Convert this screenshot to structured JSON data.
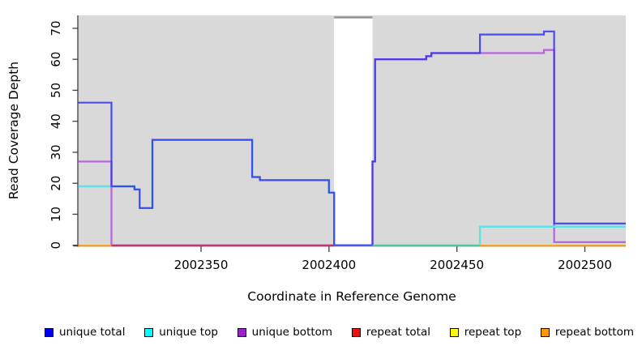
{
  "chart_data": {
    "type": "line",
    "subtype": "step-coverage",
    "title": "",
    "xlabel": "Coordinate in Reference Genome",
    "ylabel": "Read Coverage Depth",
    "x_ticks": [
      2002350,
      2002400,
      2002450,
      2002500
    ],
    "y_ticks": [
      0,
      10,
      20,
      30,
      40,
      50,
      60,
      70
    ],
    "x_range": [
      2002302,
      2002516
    ],
    "y_range": [
      0,
      74
    ],
    "grid": "off",
    "legend_position": "bottom",
    "plot_bg": "#D9D9D9",
    "axis_color": "#404040",
    "masked_region": {
      "x1": 2002402,
      "x2": 2002417,
      "fill": "#FFFFFF",
      "top_border": "#8A8A8A"
    },
    "series": [
      {
        "key": "unique-total",
        "label": "unique total",
        "legend_color": "#0000EE",
        "line_color": "#3232EE",
        "line_width": 2.2,
        "opacity": 0.85,
        "draw": true,
        "points": [
          [
            2002302,
            46
          ],
          [
            2002315,
            19
          ],
          [
            2002324,
            18
          ],
          [
            2002326,
            12
          ],
          [
            2002331,
            34
          ],
          [
            2002370,
            22
          ],
          [
            2002373,
            21
          ],
          [
            2002400,
            17
          ],
          [
            2002402,
            0
          ],
          [
            2002417,
            27
          ],
          [
            2002418,
            60
          ],
          [
            2002438,
            61
          ],
          [
            2002440,
            62
          ],
          [
            2002459,
            68
          ],
          [
            2002484,
            69
          ],
          [
            2002488,
            7
          ],
          [
            2002516,
            7
          ]
        ]
      },
      {
        "key": "unique-top",
        "label": "unique top",
        "legend_color": "#00FFFF",
        "line_color": "#60E2EA",
        "line_width": 2.5,
        "opacity": 1,
        "draw": true,
        "points": [
          [
            2002302,
            19
          ],
          [
            2002324,
            18
          ],
          [
            2002326,
            12
          ],
          [
            2002331,
            34
          ],
          [
            2002370,
            22
          ],
          [
            2002373,
            21
          ],
          [
            2002400,
            17
          ],
          [
            2002402,
            0
          ],
          [
            2002459,
            6
          ],
          [
            2002516,
            6
          ]
        ]
      },
      {
        "key": "unique-bottom",
        "label": "unique bottom",
        "legend_color": "#9922CC",
        "line_color": "#B768DF",
        "line_width": 2.3,
        "opacity": 1,
        "draw": true,
        "points": [
          [
            2002302,
            27
          ],
          [
            2002315,
            0
          ],
          [
            2002417,
            27
          ],
          [
            2002418,
            60
          ],
          [
            2002438,
            61
          ],
          [
            2002440,
            62
          ],
          [
            2002484,
            63
          ],
          [
            2002488,
            1
          ],
          [
            2002516,
            1
          ]
        ]
      },
      {
        "key": "repeat-total",
        "label": "repeat total",
        "legend_color": "#EE1111",
        "line_color": "#C92A52",
        "line_width": 1.8,
        "opacity": 1,
        "draw": false,
        "points": [
          [
            2002302,
            0
          ],
          [
            2002516,
            0
          ]
        ]
      },
      {
        "key": "repeat-top",
        "label": "repeat top",
        "legend_color": "#FFFF00",
        "line_color": "#FFFF00",
        "line_width": 1.8,
        "opacity": 1,
        "draw": false,
        "points": [
          [
            2002302,
            0
          ],
          [
            2002516,
            0
          ]
        ]
      },
      {
        "key": "repeat-bottom",
        "label": "repeat bottom",
        "legend_color": "#FF9900",
        "line_color": "#FF9900",
        "line_width": 1.8,
        "opacity": 1,
        "draw": false,
        "points": [
          [
            2002302,
            0
          ],
          [
            2002516,
            0
          ]
        ]
      }
    ],
    "baseline_segments": [
      {
        "x1": 2002302,
        "x2": 2002315,
        "color": "#FF9900"
      },
      {
        "x1": 2002315,
        "x2": 2002402,
        "color": "#C92A52"
      },
      {
        "x1": 2002417,
        "x2": 2002459,
        "color": "#4FC488"
      },
      {
        "x1": 2002459,
        "x2": 2002516,
        "color": "#FF9900"
      }
    ]
  }
}
